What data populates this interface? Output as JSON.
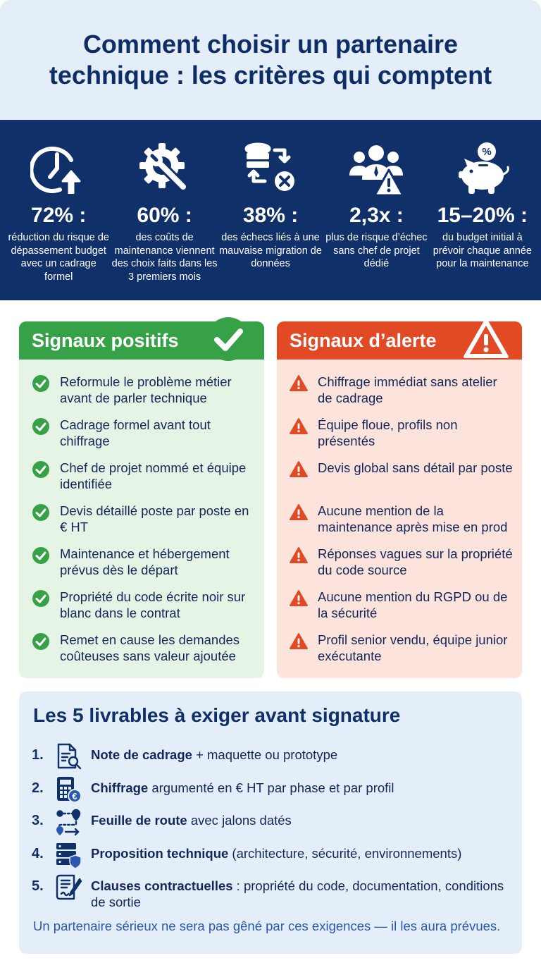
{
  "title": "Comment choisir un partenaire technique : les critères qui comptent",
  "colors": {
    "navy": "#0f3069",
    "header_bg": "#e4eef9",
    "positive": "#36a146",
    "positive_bg": "#e6f4e6",
    "alert": "#e24a26",
    "alert_bg": "#fce4dc"
  },
  "stats": [
    {
      "icon": "clock-arrow-up-icon",
      "value": "72% :",
      "desc": "réduction du risque de dépassement budget avec un cadrage formel"
    },
    {
      "icon": "gear-wrench-icon",
      "value": "60% :",
      "desc": "des coûts de maintenance viennent des choix faits dans les 3 premiers mois"
    },
    {
      "icon": "database-migration-error-icon",
      "value": "38% :",
      "desc": "des échecs liés à une mauvaise migration de données"
    },
    {
      "icon": "team-warning-icon",
      "value": "2,3x :",
      "desc": "plus de risque d’échec sans chef de projet dédié"
    },
    {
      "icon": "piggy-bank-percent-icon",
      "value": "15–20% :",
      "desc": "du budget initial à prévoir chaque année pour la maintenance"
    }
  ],
  "positive": {
    "title": "Signaux positifs",
    "icon": "check-circle-icon",
    "items": [
      "Reformule le problème métier avant de parler technique",
      "Cadrage formel avant tout chiffrage",
      "Chef de projet nommé et équipe identifiée",
      "Devis détaillé poste par poste en € HT",
      "Maintenance et hébergement prévus dès le départ",
      "Propriété du code écrite noir sur blanc dans le contrat",
      "Remet en cause les demandes coûteuses sans valeur ajoutée"
    ]
  },
  "alert": {
    "title": "Signaux d’alerte",
    "icon": "warning-triangle-icon",
    "items": [
      "Chiffrage immédiat sans atelier de cadrage",
      "Équipe floue, profils non présentés",
      "Devis global sans détail par poste",
      "Aucune mention de la maintenance après mise en prod",
      "Réponses vagues sur la propriété du code source",
      "Aucune mention du RGPD ou de la sécurité",
      "Profil senior vendu, équipe junior exécutante"
    ]
  },
  "deliverables": {
    "title": "Les 5 livrables à exiger avant signature",
    "items": [
      {
        "num": "1.",
        "icon": "document-search-icon",
        "bold": "Note de cadrage",
        "rest": " + maquette ou prototype"
      },
      {
        "num": "2.",
        "icon": "calculator-euro-icon",
        "bold": "Chiffrage",
        "rest": " argumenté en € HT par phase et par profil"
      },
      {
        "num": "3.",
        "icon": "roadmap-pins-icon",
        "bold": "Feuille de route",
        "rest": " avec jalons datés"
      },
      {
        "num": "4.",
        "icon": "server-shield-icon",
        "bold": "Proposition technique",
        "rest": " (architecture, sécurité, environnements)"
      },
      {
        "num": "5.",
        "icon": "contract-pen-icon",
        "bold": "Clauses contractuelles",
        "rest": " : propriété du code, documentation, conditions de sortie"
      }
    ],
    "footer": "Un partenaire sérieux ne sera pas gêné par ces exigences — il les aura prévues."
  }
}
